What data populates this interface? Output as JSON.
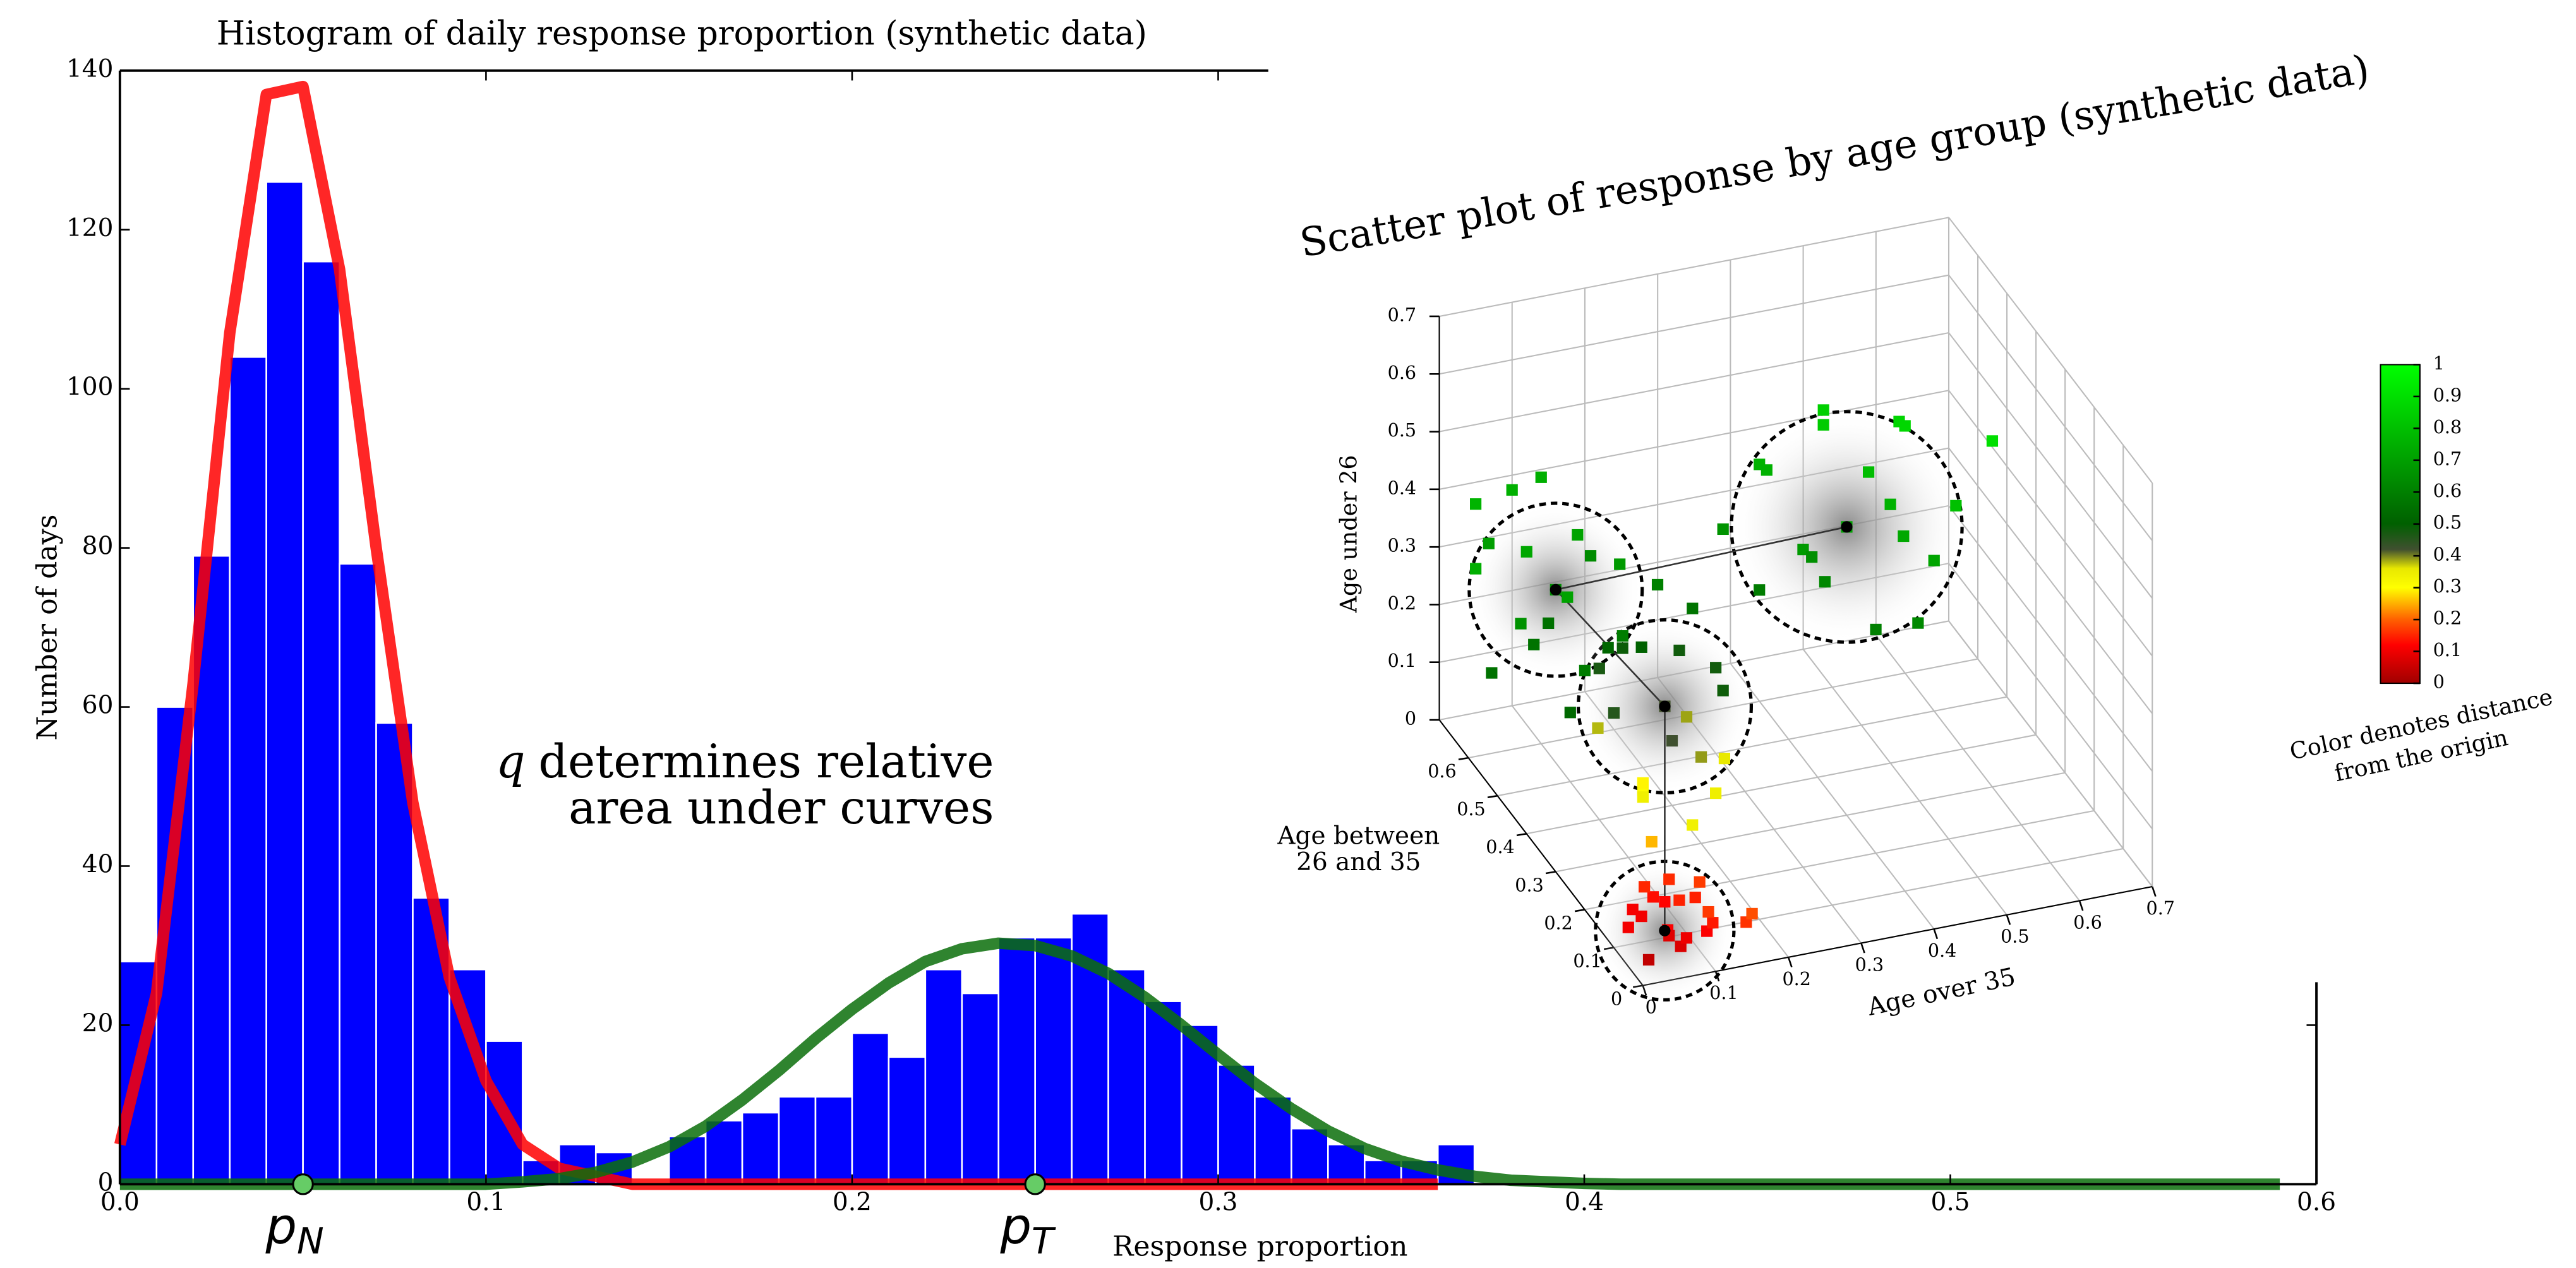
{
  "chart_data": [
    {
      "type": "histogram",
      "title": "Histogram of daily response proportion (synthetic data)",
      "xlabel": "Response proportion",
      "ylabel": "Number of days",
      "xlim": [
        0,
        0.6
      ],
      "ylim": [
        0,
        140
      ],
      "xticks": [
        {
          "value": 0,
          "label": "0.0"
        },
        0.1,
        0.2,
        0.3,
        0.4,
        0.5,
        0.6
      ],
      "yticks": [
        0,
        20,
        40,
        60,
        80,
        100,
        120,
        140
      ],
      "color": "#0000ff",
      "bins": [
        0,
        0.01,
        0.02,
        0.03,
        0.04,
        0.05,
        0.06,
        0.07,
        0.08,
        0.09,
        0.1,
        0.11,
        0.12,
        0.13,
        0.14,
        0.15,
        0.16,
        0.17,
        0.18,
        0.19,
        0.2,
        0.21,
        0.22,
        0.23,
        0.24,
        0.25,
        0.26,
        0.27,
        0.28,
        0.29,
        0.3,
        0.31,
        0.32,
        0.33,
        0.34,
        0.35,
        0.36,
        0.37
      ],
      "values": [
        28,
        60,
        79,
        104,
        126,
        116,
        78,
        58,
        36,
        27,
        18,
        3,
        5,
        4,
        0,
        6,
        8,
        9,
        11,
        11,
        19,
        16,
        27,
        24,
        31,
        31,
        34,
        27,
        23,
        20,
        15,
        11,
        7,
        5,
        3,
        3,
        5
      ],
      "curves": [
        {
          "color": "#ff0000",
          "x": [
            0,
            0.01,
            0.02,
            0.03,
            0.04,
            0.05,
            0.06,
            0.07,
            0.08,
            0.09,
            0.1,
            0.11,
            0.12,
            0.13,
            0.14,
            0.15,
            0.16,
            0.17,
            0.18,
            0.19,
            0.2,
            0.21,
            0.22,
            0.23,
            0.24,
            0.25,
            0.26,
            0.27,
            0.28,
            0.29,
            0.3,
            0.31,
            0.32,
            0.33,
            0.34,
            0.35,
            0.36
          ],
          "y": [
            5,
            24,
            63,
            107,
            137,
            138,
            115,
            80,
            48,
            26,
            13,
            5,
            2,
            1,
            0,
            0,
            0,
            0,
            0,
            0,
            0,
            0,
            0,
            0,
            0,
            0,
            0,
            0,
            0,
            0,
            0,
            0,
            0,
            0,
            0,
            0,
            0
          ]
        },
        {
          "color": "#0a6e0a",
          "x": [
            0,
            0.01,
            0.02,
            0.03,
            0.04,
            0.05,
            0.06,
            0.07,
            0.08,
            0.09,
            0.1,
            0.11,
            0.12,
            0.13,
            0.14,
            0.15,
            0.16,
            0.17,
            0.18,
            0.19,
            0.2,
            0.21,
            0.22,
            0.23,
            0.24,
            0.25,
            0.26,
            0.27,
            0.28,
            0.29,
            0.3,
            0.31,
            0.32,
            0.33,
            0.34,
            0.35,
            0.36,
            0.37,
            0.38,
            0.39,
            0.4,
            0.41,
            0.42,
            0.43,
            0.44,
            0.45,
            0.46,
            0.47,
            0.48,
            0.49,
            0.5,
            0.51,
            0.52,
            0.53,
            0.54,
            0.55,
            0.56,
            0.57,
            0.58,
            0.59
          ],
          "y": [
            0,
            0,
            0,
            0,
            0,
            0,
            0,
            0,
            0,
            0,
            0,
            0.3,
            0.7,
            1.5,
            2.8,
            4.7,
            7.3,
            10.6,
            14.3,
            18.3,
            22,
            25.3,
            28,
            29.6,
            30.3,
            30,
            28.7,
            26.5,
            23.5,
            20,
            16.3,
            12.7,
            9.5,
            6.7,
            4.5,
            2.9,
            1.8,
            1,
            0.5,
            0.3,
            0.1,
            0,
            0,
            0,
            0,
            0,
            0,
            0,
            0,
            0,
            0,
            0,
            0,
            0,
            0,
            0,
            0,
            0,
            0,
            0
          ]
        }
      ],
      "markers": [
        {
          "x": 0.05,
          "label": "p",
          "subscript": "N",
          "color": "#66cc66"
        },
        {
          "x": 0.25,
          "label": "p",
          "subscript": "T",
          "color": "#66cc66"
        }
      ],
      "annotation": {
        "variable": "q",
        "lines": [
          "determines relative",
          "area under curves"
        ]
      }
    },
    {
      "type": "scatter3d",
      "title": "Scatter plot of response by age group (synthetic data)",
      "xlabel": "Age over 35",
      "ylabel": [
        "Age between",
        "26 and 35"
      ],
      "zlabel": "Age under 26",
      "xlim": [
        0,
        0.7
      ],
      "ylim": [
        0,
        0.7
      ],
      "zlim": [
        0,
        0.7
      ],
      "xticks": [
        0,
        0.1,
        0.2,
        0.3,
        0.4,
        0.5,
        0.6,
        0.7
      ],
      "yticks": [
        0,
        0.1,
        0.2,
        0.3,
        0.4,
        0.5,
        0.6
      ],
      "zticks": [
        0,
        0.1,
        0.2,
        0.3,
        0.4,
        0.5,
        0.6,
        0.7
      ],
      "clusters": [
        {
          "center": [
            0.05,
            0.05,
            0.05
          ],
          "radius": 0.12,
          "points": [
            [
              0.02,
              0.03,
              0.02
            ],
            [
              0.06,
              0.02,
              0.04
            ],
            [
              0.08,
              0.05,
              0.03
            ],
            [
              0.03,
              0.08,
              0.06
            ],
            [
              0.05,
              0.05,
              0.1
            ],
            [
              0.1,
              0.03,
              0.05
            ],
            [
              0.01,
              0.06,
              0.09
            ],
            [
              0.07,
              0.09,
              0.02
            ],
            [
              0.04,
              0.01,
              0.07
            ],
            [
              0.12,
              0.06,
              0.04
            ],
            [
              0.09,
              0.1,
              0.06
            ],
            [
              0.02,
              0.1,
              0.03
            ],
            [
              0.15,
              0.02,
              0.06
            ],
            [
              0.06,
              0.06,
              0.13
            ],
            [
              0.11,
              0.08,
              0.1
            ],
            [
              0.03,
              0.04,
              0.12
            ],
            [
              0.13,
              0.1,
              0.03
            ],
            [
              0.08,
              0.02,
              0.12
            ],
            [
              0.17,
              0.05,
              0.05
            ],
            [
              0.05,
              0.12,
              0.08
            ]
          ]
        },
        {
          "center": [
            0.15,
            0.3,
            0.25
          ],
          "radius": 0.15,
          "points": [
            [
              0.15,
              0.3,
              0.25
            ],
            [
              0.1,
              0.25,
              0.15
            ],
            [
              0.2,
              0.25,
              0.12
            ],
            [
              0.12,
              0.3,
              0.1
            ],
            [
              0.18,
              0.35,
              0.15
            ],
            [
              0.08,
              0.2,
              0.2
            ],
            [
              0.22,
              0.3,
              0.3
            ],
            [
              0.15,
              0.38,
              0.3
            ],
            [
              0.1,
              0.32,
              0.35
            ],
            [
              0.2,
              0.22,
              0.2
            ],
            [
              0.05,
              0.28,
              0.25
            ],
            [
              0.25,
              0.35,
              0.22
            ],
            [
              0.15,
              0.25,
              0.38
            ],
            [
              0.12,
              0.4,
              0.18
            ],
            [
              0.18,
              0.28,
              0.05
            ],
            [
              0.1,
              0.22,
              0.08
            ],
            [
              0.22,
              0.38,
              0.35
            ],
            [
              0.08,
              0.35,
              0.3
            ],
            [
              0.2,
              0.3,
              0.15
            ],
            [
              0.14,
              0.2,
              0.3
            ]
          ]
        },
        {
          "center": [
            0.1,
            0.55,
            0.3
          ],
          "radius": 0.15,
          "points": [
            [
              0.1,
              0.55,
              0.3
            ],
            [
              0.05,
              0.5,
              0.25
            ],
            [
              0.15,
              0.6,
              0.35
            ],
            [
              0.08,
              0.62,
              0.2
            ],
            [
              0.12,
              0.48,
              0.4
            ],
            [
              0.02,
              0.58,
              0.38
            ],
            [
              0.18,
              0.52,
              0.22
            ],
            [
              0.1,
              0.65,
              0.3
            ],
            [
              0.05,
              0.45,
              0.32
            ],
            [
              0.14,
              0.55,
              0.15
            ],
            [
              0.06,
              0.6,
              0.45
            ],
            [
              0.2,
              0.58,
              0.3
            ],
            [
              0,
              0.52,
              0.2
            ],
            [
              0.12,
              0.42,
              0.28
            ],
            [
              0.08,
              0.55,
              0.5
            ],
            [
              0.16,
              0.66,
              0.2
            ],
            [
              0.03,
              0.65,
              0.4
            ],
            [
              0.1,
              0.5,
              0.12
            ],
            [
              0.2,
              0.45,
              0.35
            ],
            [
              0.05,
              0.7,
              0.25
            ]
          ]
        },
        {
          "center": [
            0.4,
            0.3,
            0.5
          ],
          "radius": 0.2,
          "points": [
            [
              0.4,
              0.3,
              0.5
            ],
            [
              0.35,
              0.25,
              0.45
            ],
            [
              0.45,
              0.35,
              0.55
            ],
            [
              0.3,
              0.35,
              0.6
            ],
            [
              0.5,
              0.25,
              0.45
            ],
            [
              0.42,
              0.2,
              0.6
            ],
            [
              0.38,
              0.4,
              0.4
            ],
            [
              0.48,
              0.32,
              0.65
            ],
            [
              0.32,
              0.22,
              0.52
            ],
            [
              0.55,
              0.3,
              0.5
            ],
            [
              0.4,
              0.38,
              0.65
            ],
            [
              0.28,
              0.3,
              0.42
            ],
            [
              0.45,
              0.18,
              0.4
            ],
            [
              0.36,
              0.28,
              0.7
            ],
            [
              0.52,
              0.4,
              0.58
            ],
            [
              0.42,
              0.25,
              0.35
            ],
            [
              0.33,
              0.4,
              0.55
            ],
            [
              0.6,
              0.3,
              0.6
            ],
            [
              0.25,
              0.35,
              0.5
            ],
            [
              0.47,
              0.28,
              0.48
            ]
          ]
        }
      ],
      "colorbar": {
        "label": [
          "Color denotes distance",
          "from the origin"
        ],
        "ticks": [
          0,
          0.1,
          0.2,
          0.3,
          0.4,
          0.5,
          0.6,
          0.7,
          0.8,
          0.9,
          1
        ],
        "colormap": [
          [
            0,
            "#a00000"
          ],
          [
            0.12,
            "#ff0000"
          ],
          [
            0.2,
            "#ff6000"
          ],
          [
            0.3,
            "#ffff00"
          ],
          [
            0.36,
            "#e8e800"
          ],
          [
            0.42,
            "#405030"
          ],
          [
            0.5,
            "#006000"
          ],
          [
            1,
            "#00ff00"
          ]
        ]
      }
    }
  ]
}
